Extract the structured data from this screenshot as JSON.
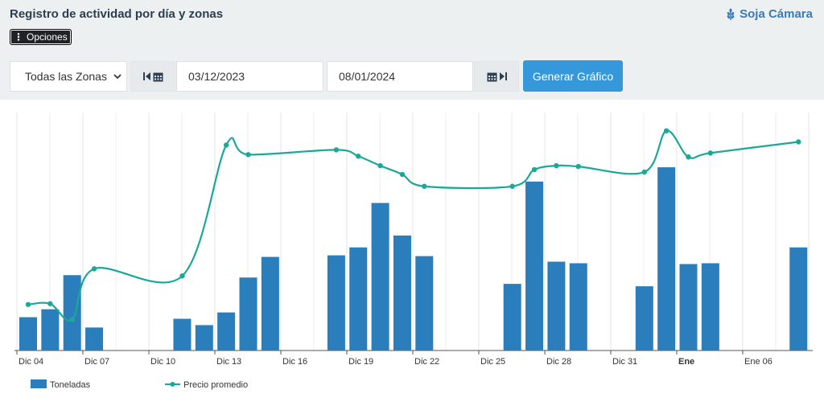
{
  "header": {
    "title": "Registro de actividad por día y zonas",
    "brand": "Soja Cámara",
    "options_label": "Opciones"
  },
  "controls": {
    "zone_selected": "Todas las Zonas",
    "date_from": "03/12/2023",
    "date_to": "08/01/2024",
    "generate_label": "Generar Gráfico"
  },
  "colors": {
    "bar": "#2a7ebb",
    "line": "#1aa898",
    "button": "#3498db"
  },
  "chart_data": {
    "type": "bar",
    "x_ticks": [
      {
        "label": "Dic 04",
        "bold": false
      },
      {
        "label": "Dic 07",
        "bold": false
      },
      {
        "label": "Dic 10",
        "bold": false
      },
      {
        "label": "Dic 13",
        "bold": false
      },
      {
        "label": "Dic 16",
        "bold": false
      },
      {
        "label": "Dic 19",
        "bold": false
      },
      {
        "label": "Dic 22",
        "bold": false
      },
      {
        "label": "Dic 25",
        "bold": false
      },
      {
        "label": "Dic 28",
        "bold": false
      },
      {
        "label": "Dic 31",
        "bold": false
      },
      {
        "label": "Ene",
        "bold": true
      },
      {
        "label": "Ene 06",
        "bold": false
      }
    ],
    "x": [
      "2023-12-04",
      "2023-12-05",
      "2023-12-06",
      "2023-12-07",
      "2023-12-08",
      "2023-12-09",
      "2023-12-10",
      "2023-12-11",
      "2023-12-12",
      "2023-12-13",
      "2023-12-14",
      "2023-12-15",
      "2023-12-16",
      "2023-12-17",
      "2023-12-18",
      "2023-12-19",
      "2023-12-20",
      "2023-12-21",
      "2023-12-22",
      "2023-12-23",
      "2023-12-24",
      "2023-12-25",
      "2023-12-26",
      "2023-12-27",
      "2023-12-28",
      "2023-12-29",
      "2023-12-30",
      "2023-12-31",
      "2024-01-01",
      "2024-01-02",
      "2024-01-03",
      "2024-01-04",
      "2024-01-05",
      "2024-01-06",
      "2024-01-07",
      "2024-01-08"
    ],
    "series": [
      {
        "name": "Toneladas",
        "type": "bar",
        "values": [
          42,
          52,
          95,
          29,
          null,
          null,
          null,
          40,
          32,
          48,
          92,
          118,
          null,
          null,
          120,
          130,
          186,
          145,
          119,
          null,
          null,
          null,
          84,
          213,
          112,
          110,
          null,
          null,
          81,
          231,
          109,
          110,
          null,
          null,
          null,
          130
        ]
      },
      {
        "name": "Precio promedio",
        "type": "line",
        "values": [
          58,
          59,
          39,
          103,
          null,
          null,
          null,
          94,
          null,
          259,
          247,
          null,
          null,
          null,
          253,
          245,
          233,
          222,
          207,
          null,
          null,
          null,
          207,
          228,
          233,
          232,
          null,
          null,
          225,
          277,
          244,
          249,
          null,
          null,
          null,
          263
        ]
      }
    ],
    "grid_x": true,
    "legend_position": "bottom-left"
  }
}
